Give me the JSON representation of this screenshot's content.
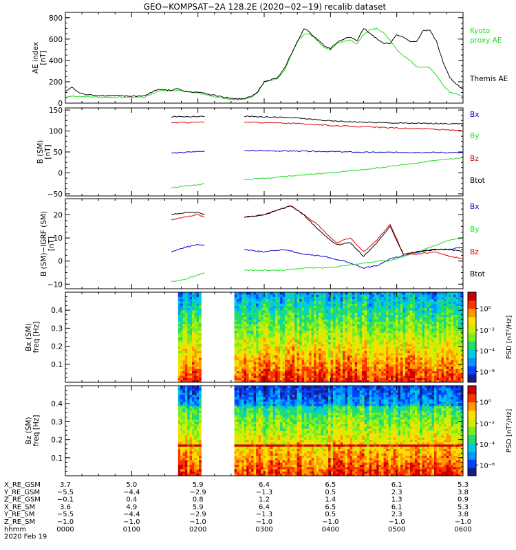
{
  "title": "GEO−KOMPSAT−2A 128.2E (2020−02−19) recalib dataset",
  "chart_data": [
    {
      "id": "ae",
      "type": "line",
      "ylabel_top": "AE index",
      "ylabel_bottom": "[nT]",
      "ylim": [
        0,
        850
      ],
      "yticks": [
        0,
        200,
        400,
        600,
        800
      ],
      "series": [
        {
          "name": "Kyoto\nproxy AE",
          "color": "#22dd22",
          "x": [
            0,
            0.1,
            0.2,
            0.3,
            0.4,
            0.5,
            0.6,
            0.8,
            1.0,
            1.2,
            1.4,
            1.6,
            1.7,
            1.8,
            2.0,
            2.2,
            2.4,
            2.6,
            2.7,
            2.8,
            2.9,
            3.0,
            3.1,
            3.2,
            3.3,
            3.4,
            3.5,
            3.6,
            3.65,
            3.7,
            3.8,
            3.9,
            4.0,
            4.1,
            4.2,
            4.3,
            4.4,
            4.5,
            4.6,
            4.7,
            4.8,
            4.9,
            5.0,
            5.1,
            5.2,
            5.3,
            5.4,
            5.5,
            5.6,
            5.7,
            5.8,
            5.9,
            6.0
          ],
          "y": [
            55,
            65,
            60,
            60,
            60,
            55,
            55,
            55,
            55,
            55,
            115,
            115,
            120,
            110,
            95,
            65,
            40,
            35,
            40,
            55,
            100,
            195,
            215,
            230,
            300,
            440,
            580,
            640,
            650,
            640,
            590,
            520,
            500,
            560,
            580,
            590,
            560,
            640,
            690,
            700,
            660,
            590,
            500,
            440,
            400,
            340,
            340,
            330,
            260,
            170,
            100,
            90,
            60
          ]
        },
        {
          "name": "Themis AE",
          "color": "#000000",
          "x": [
            0,
            0.1,
            0.2,
            0.3,
            0.4,
            0.5,
            0.6,
            0.8,
            1.0,
            1.2,
            1.4,
            1.6,
            1.7,
            1.8,
            2.0,
            2.2,
            2.4,
            2.6,
            2.7,
            2.8,
            2.9,
            3.0,
            3.1,
            3.2,
            3.3,
            3.4,
            3.5,
            3.6,
            3.65,
            3.7,
            3.8,
            3.9,
            4.0,
            4.1,
            4.2,
            4.3,
            4.4,
            4.5,
            4.6,
            4.7,
            4.8,
            4.9,
            5.0,
            5.1,
            5.2,
            5.3,
            5.4,
            5.5,
            5.6,
            5.7,
            5.8,
            5.9,
            6.0
          ],
          "y": [
            110,
            150,
            100,
            80,
            80,
            70,
            70,
            70,
            65,
            70,
            130,
            120,
            135,
            110,
            100,
            80,
            55,
            40,
            45,
            60,
            105,
            200,
            220,
            235,
            320,
            450,
            570,
            700,
            680,
            650,
            600,
            540,
            510,
            570,
            600,
            620,
            580,
            700,
            650,
            600,
            560,
            560,
            640,
            620,
            580,
            580,
            680,
            680,
            580,
            380,
            240,
            180,
            130
          ]
        }
      ]
    },
    {
      "id": "b",
      "type": "line",
      "ylabel_top": "B (SM)",
      "ylabel_bottom": "[nT]",
      "ylim": [
        -55,
        155
      ],
      "yticks": [
        -50,
        0,
        50,
        100,
        150
      ],
      "series": [
        {
          "name": "Bx",
          "color": "#0000cc",
          "segments": [
            {
              "x": [
                1.6,
                2.1
              ],
              "y": [
                47,
                52
              ]
            },
            {
              "x": [
                2.7,
                3.5,
                4.0,
                4.5,
                5.0,
                5.5,
                6.0
              ],
              "y": [
                53,
                52,
                51,
                49,
                49,
                49,
                48
              ]
            }
          ]
        },
        {
          "name": "By",
          "color": "#22dd22",
          "segments": [
            {
              "x": [
                1.6,
                1.8,
                2.0,
                2.1
              ],
              "y": [
                -35,
                -32,
                -28,
                -26
              ]
            },
            {
              "x": [
                2.7,
                3.0,
                3.5,
                4.0,
                4.5,
                5.0,
                5.5,
                6.0
              ],
              "y": [
                -16,
                -13,
                -6,
                0,
                8,
                17,
                28,
                37
              ]
            }
          ]
        },
        {
          "name": "Bz",
          "color": "#dd0000",
          "segments": [
            {
              "x": [
                1.6,
                2.1
              ],
              "y": [
                120,
                121
              ]
            },
            {
              "x": [
                2.7,
                3.0,
                3.5,
                4.0,
                4.5,
                5.0,
                5.5,
                6.0
              ],
              "y": [
                121,
                120,
                118,
                113,
                110,
                107,
                105,
                100
              ]
            }
          ]
        },
        {
          "name": "Btot",
          "color": "#000000",
          "segments": [
            {
              "x": [
                1.6,
                2.1
              ],
              "y": [
                134,
                135
              ]
            },
            {
              "x": [
                2.7,
                3.0,
                3.5,
                4.0,
                4.5,
                5.0,
                5.5,
                6.0
              ],
              "y": [
                135,
                134,
                131,
                124,
                121,
                119,
                118,
                117
              ]
            }
          ]
        }
      ]
    },
    {
      "id": "db",
      "type": "line",
      "ylabel_top": "B (SM)−IGRF (SM)",
      "ylabel_bottom": "[nT]",
      "ylim": [
        -12,
        27
      ],
      "yticks": [
        -10,
        0,
        10,
        20
      ],
      "series": [
        {
          "name": "Bx",
          "color": "#0000cc",
          "segments": [
            {
              "x": [
                1.6,
                1.8,
                2.0,
                2.1
              ],
              "y": [
                4,
                6,
                7,
                7
              ]
            },
            {
              "x": [
                2.7,
                3.0,
                3.3,
                3.6,
                3.9,
                4.2,
                4.5,
                4.7,
                4.9,
                5.2,
                5.5,
                5.8,
                6.0
              ],
              "y": [
                5,
                4,
                5,
                3,
                2,
                0,
                -3,
                -2,
                1,
                3,
                5,
                5,
                6
              ]
            }
          ]
        },
        {
          "name": "By",
          "color": "#22dd22",
          "segments": [
            {
              "x": [
                1.6,
                1.8,
                2.0,
                2.1
              ],
              "y": [
                -9,
                -8,
                -6,
                -5
              ]
            },
            {
              "x": [
                2.7,
                3.0,
                3.3,
                3.6,
                3.9,
                4.2,
                4.5,
                4.7,
                4.9,
                5.2,
                5.5,
                5.8,
                6.0
              ],
              "y": [
                -4,
                -4,
                -4,
                -3,
                -3,
                -2,
                -1,
                0,
                0,
                3,
                6,
                9,
                10
              ]
            }
          ]
        },
        {
          "name": "Bz",
          "color": "#dd0000",
          "segments": [
            {
              "x": [
                1.6,
                1.8,
                2.0,
                2.1
              ],
              "y": [
                18,
                19,
                20,
                19
              ]
            },
            {
              "x": [
                2.7,
                3.0,
                3.2,
                3.4,
                3.6,
                3.8,
                4.0,
                4.1,
                4.3,
                4.5,
                4.7,
                4.9,
                5.1,
                5.3,
                5.6,
                5.8,
                6.0
              ],
              "y": [
                19,
                20,
                22,
                24,
                20,
                16,
                10,
                8,
                10,
                4,
                9,
                16,
                3,
                3,
                4,
                2,
                1
              ]
            }
          ]
        },
        {
          "name": "Btot",
          "color": "#000000",
          "segments": [
            {
              "x": [
                1.6,
                1.8,
                2.0,
                2.1
              ],
              "y": [
                20,
                21,
                21,
                20
              ]
            },
            {
              "x": [
                2.7,
                3.0,
                3.2,
                3.4,
                3.6,
                3.8,
                4.0,
                4.1,
                4.3,
                4.5,
                4.7,
                4.9,
                5.1,
                5.3,
                5.6,
                5.8,
                6.0
              ],
              "y": [
                19,
                20,
                22,
                24,
                20,
                14,
                9,
                7,
                8,
                2,
                8,
                15,
                3,
                4,
                5,
                5,
                4
              ]
            }
          ]
        }
      ]
    },
    {
      "id": "spec_bx",
      "type": "heatmap",
      "ylabel_top": "Bx (SM)",
      "ylabel_bottom": "freq [Hz]",
      "ylim": [
        0,
        0.5
      ],
      "yticks": [
        0.1,
        0.2,
        0.3,
        0.4
      ],
      "data_x_ranges": [
        [
          1.7,
          2.05
        ],
        [
          2.55,
          6.0
        ]
      ],
      "colorbar": {
        "label": "PSD [nT²/Hz]",
        "ticks": [
          "10⁰",
          "10⁻²",
          "10⁻⁴",
          "10⁻⁶"
        ]
      }
    },
    {
      "id": "spec_bz",
      "type": "heatmap",
      "ylabel_top": "Bz (SM)",
      "ylabel_bottom": "freq [Hz]",
      "ylim": [
        0,
        0.5
      ],
      "yticks": [
        0.1,
        0.2,
        0.3,
        0.4
      ],
      "data_x_ranges": [
        [
          1.7,
          2.05
        ],
        [
          2.55,
          6.0
        ]
      ],
      "colorbar": {
        "label": "PSD [nT²/Hz]",
        "ticks": [
          "10⁰",
          "10⁻²",
          "10⁻⁴",
          "10⁻⁶"
        ]
      }
    }
  ],
  "x_axis": {
    "xlim": [
      0,
      6
    ],
    "tick_positions": [
      0,
      1,
      2,
      3,
      4,
      5,
      6
    ],
    "rows": [
      {
        "label": "X_RE_GSM",
        "values": [
          "3.7",
          "5.0",
          "5.9",
          "6.4",
          "6.5",
          "6.1",
          "5.3"
        ]
      },
      {
        "label": "Y_RE_GSM",
        "values": [
          "−5.5",
          "−4.4",
          "−2.9",
          "−1.3",
          "0.5",
          "2.3",
          "3.8"
        ]
      },
      {
        "label": "Z_RE_GSM",
        "values": [
          "−0.1",
          "0.4",
          "0.8",
          "1.2",
          "1.4",
          "1.3",
          "0.9"
        ]
      },
      {
        "label": "X_RE_SM",
        "values": [
          "3.6",
          "4.9",
          "5.9",
          "6.4",
          "6.5",
          "6.1",
          "5.3"
        ]
      },
      {
        "label": "Y_RE_SM",
        "values": [
          "−5.5",
          "−4.4",
          "−2.9",
          "−1.3",
          "0.5",
          "2.3",
          "3.8"
        ]
      },
      {
        "label": "Z_RE_SM",
        "values": [
          "−1.0",
          "−1.0",
          "−1.0",
          "−1.0",
          "−1.0",
          "−1.0",
          "−1.0"
        ]
      },
      {
        "label": "hhmm",
        "values": [
          "0000",
          "0100",
          "0200",
          "0300",
          "0400",
          "0500",
          "0600"
        ]
      }
    ],
    "date_label": "2020 Feb 19"
  }
}
